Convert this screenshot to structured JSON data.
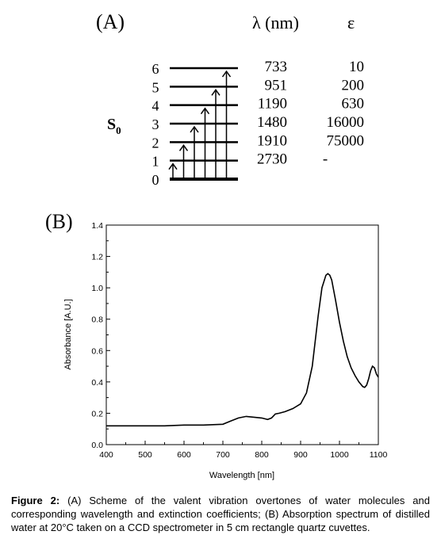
{
  "panel_a": {
    "label": "(A)",
    "header_lambda": "λ (nm)",
    "header_epsilon": "ε",
    "state_label": "S",
    "state_subscript": "0",
    "levels": [
      {
        "n": "0",
        "lambda": "",
        "epsilon": ""
      },
      {
        "n": "1",
        "lambda": "2730",
        "epsilon": "-"
      },
      {
        "n": "2",
        "lambda": "1910",
        "epsilon": "75000"
      },
      {
        "n": "3",
        "lambda": "1480",
        "epsilon": "16000"
      },
      {
        "n": "4",
        "lambda": "1190",
        "epsilon": "630"
      },
      {
        "n": "5",
        "lambda": "951",
        "epsilon": "200"
      },
      {
        "n": "6",
        "lambda": "733",
        "epsilon": "10"
      }
    ]
  },
  "panel_b": {
    "label": "(B)"
  },
  "chart_data": {
    "type": "line",
    "xlabel": "Wavelength [nm]",
    "ylabel": "Absorbance [A.U.]",
    "xlim": [
      400,
      1100
    ],
    "ylim": [
      0.0,
      1.4
    ],
    "xticks": [
      "400",
      "500",
      "600",
      "700",
      "800",
      "900",
      "1000",
      "1100"
    ],
    "yticks": [
      "0.0",
      "0.2",
      "0.4",
      "0.6",
      "0.8",
      "1.0",
      "1.2",
      "1.4"
    ],
    "grid": false,
    "series": [
      {
        "x": [
          400,
          450,
          500,
          550,
          600,
          650,
          700,
          720,
          740,
          760,
          780,
          800,
          815,
          825,
          835,
          845,
          860,
          880,
          900,
          915,
          930,
          945,
          955,
          965,
          970,
          975,
          980,
          990,
          1000,
          1010,
          1020,
          1030,
          1040,
          1050,
          1060,
          1065,
          1070,
          1075,
          1080,
          1085,
          1090,
          1095,
          1100
        ],
        "y": [
          0.12,
          0.12,
          0.12,
          0.12,
          0.125,
          0.125,
          0.13,
          0.15,
          0.17,
          0.18,
          0.175,
          0.17,
          0.16,
          0.17,
          0.195,
          0.2,
          0.21,
          0.23,
          0.26,
          0.33,
          0.5,
          0.82,
          1.0,
          1.08,
          1.09,
          1.08,
          1.05,
          0.92,
          0.78,
          0.66,
          0.56,
          0.49,
          0.44,
          0.4,
          0.37,
          0.365,
          0.38,
          0.42,
          0.47,
          0.5,
          0.49,
          0.45,
          0.43
        ]
      }
    ]
  },
  "caption": {
    "bold": "Figure 2:",
    "text": " (A) Scheme of the valent vibration overtones of water molecules and corresponding wavelength and extinction coefficients; (B) Absorption spectrum of distilled water at 20°C taken on a CCD spectrometer in 5 cm rectangle quartz cuvettes."
  }
}
